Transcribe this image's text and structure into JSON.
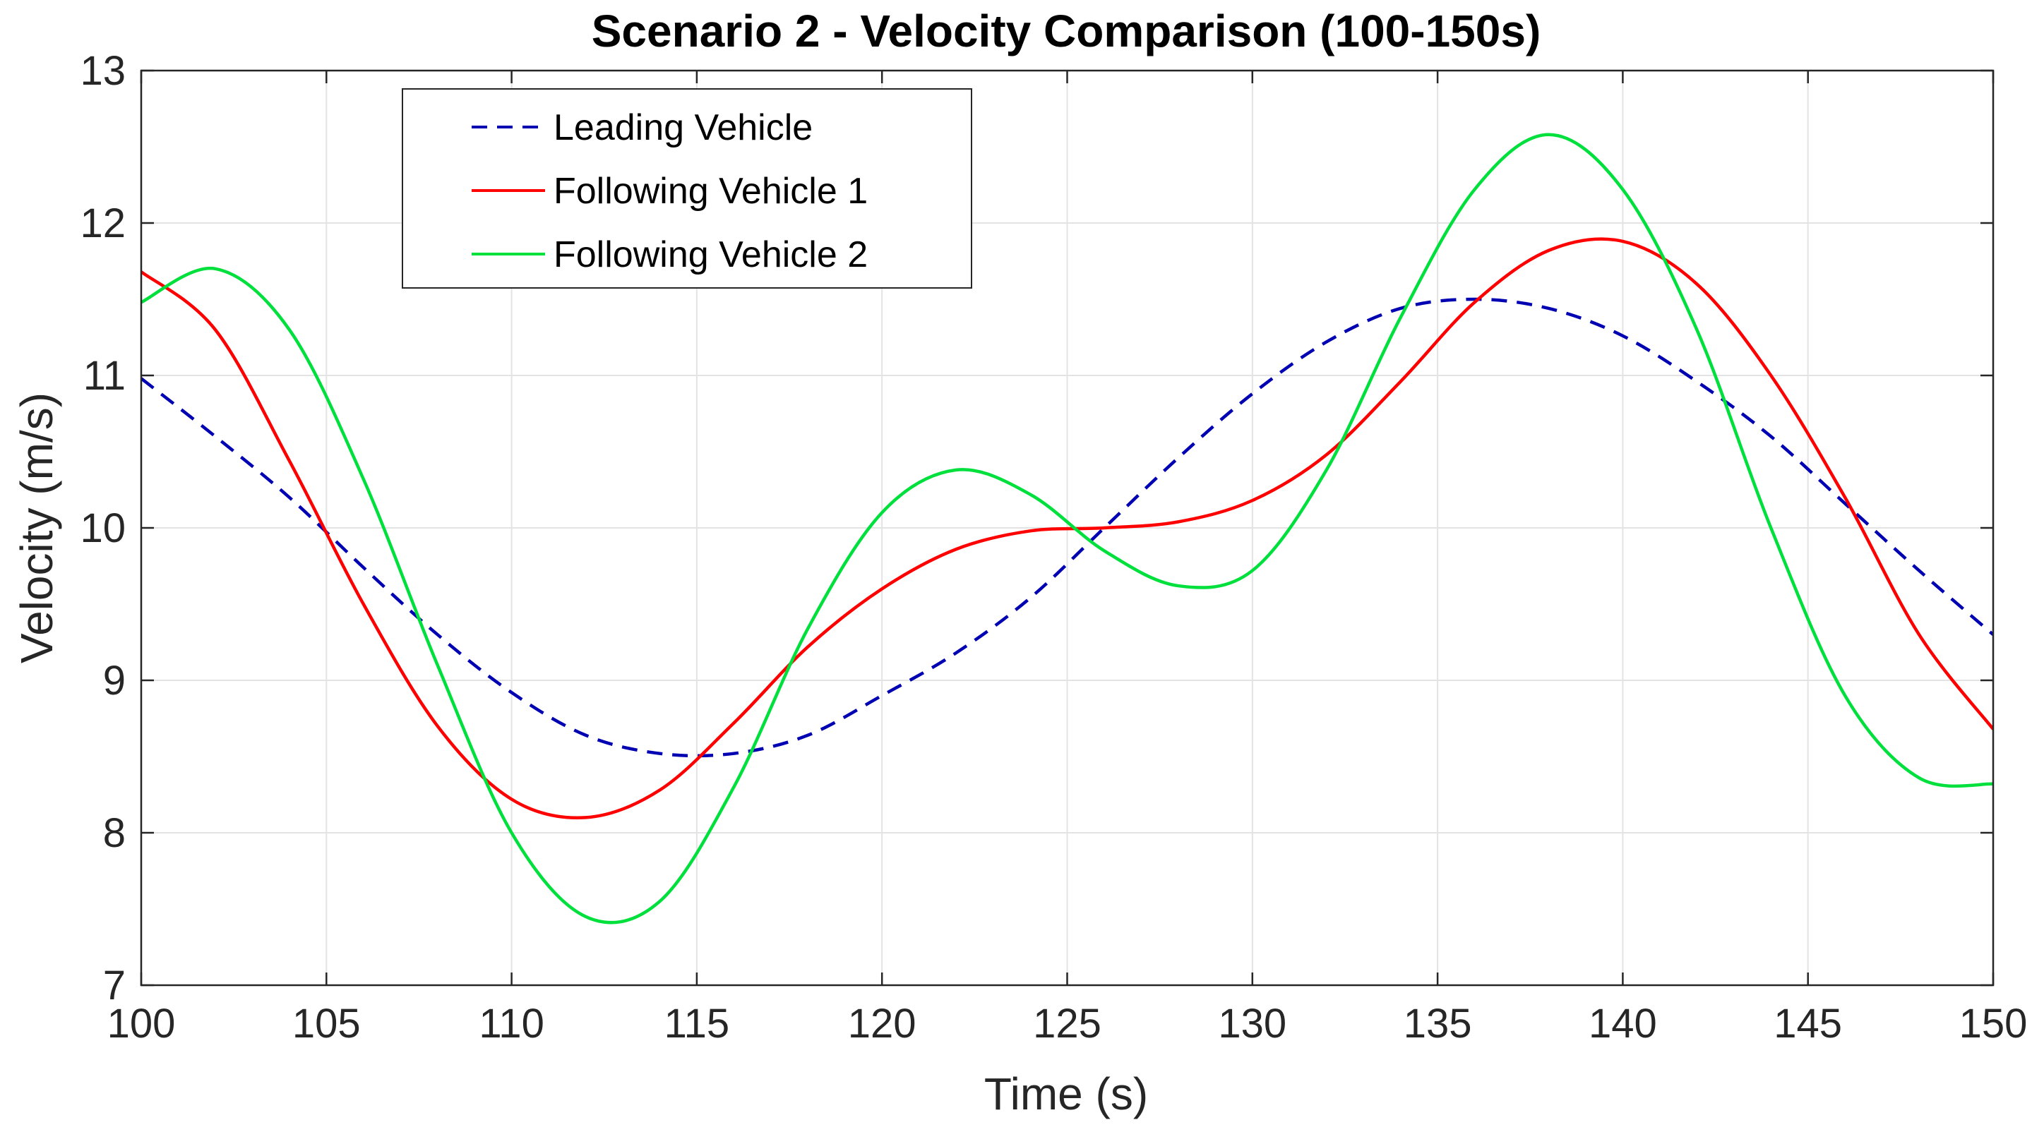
{
  "chart_data": {
    "type": "line",
    "title": "Scenario 2 - Velocity Comparison (100-150s)",
    "xlabel": "Time (s)",
    "ylabel": "Velocity (m/s)",
    "xlim": [
      100,
      150
    ],
    "ylim": [
      7,
      13
    ],
    "xticks": [
      100,
      105,
      110,
      115,
      120,
      125,
      130,
      135,
      140,
      145,
      150
    ],
    "yticks": [
      7,
      8,
      9,
      10,
      11,
      12,
      13
    ],
    "xtick_labels": [
      "100",
      "105",
      "110",
      "115",
      "120",
      "125",
      "130",
      "135",
      "140",
      "145",
      "150"
    ],
    "ytick_labels": [
      "7",
      "8",
      "9",
      "10",
      "11",
      "12",
      "13"
    ],
    "grid": true,
    "legend_position": "top-left",
    "x": [
      100,
      102,
      104,
      106,
      108,
      110,
      112,
      114,
      116,
      118,
      120,
      122,
      124,
      126,
      128,
      130,
      132,
      134,
      136,
      138,
      140,
      142,
      144,
      146,
      148,
      150
    ],
    "series": [
      {
        "name": "Leading Vehicle",
        "color": "#0000b3",
        "dash": "dashed",
        "values": [
          10.98,
          10.6,
          10.2,
          9.74,
          9.3,
          8.92,
          8.64,
          8.52,
          8.52,
          8.64,
          8.9,
          9.18,
          9.54,
          10.0,
          10.46,
          10.88,
          11.22,
          11.44,
          11.5,
          11.44,
          11.26,
          10.96,
          10.6,
          10.16,
          9.72,
          9.3
        ]
      },
      {
        "name": "Following Vehicle 1",
        "color": "#ff0000",
        "dash": "solid",
        "values": [
          11.68,
          11.3,
          10.44,
          9.5,
          8.7,
          8.22,
          8.1,
          8.28,
          8.72,
          9.22,
          9.6,
          9.86,
          9.98,
          10.0,
          10.04,
          10.18,
          10.48,
          10.96,
          11.48,
          11.82,
          11.88,
          11.6,
          11.0,
          10.2,
          9.3,
          8.68
        ]
      },
      {
        "name": "Following Vehicle 2",
        "color": "#00e03c",
        "dash": "solid",
        "values": [
          11.48,
          11.7,
          11.3,
          10.32,
          9.1,
          8.0,
          7.45,
          7.55,
          8.3,
          9.34,
          10.1,
          10.38,
          10.22,
          9.85,
          9.62,
          9.72,
          10.38,
          11.38,
          12.22,
          12.58,
          12.22,
          11.3,
          10.0,
          8.9,
          8.36,
          8.32
        ]
      }
    ]
  }
}
